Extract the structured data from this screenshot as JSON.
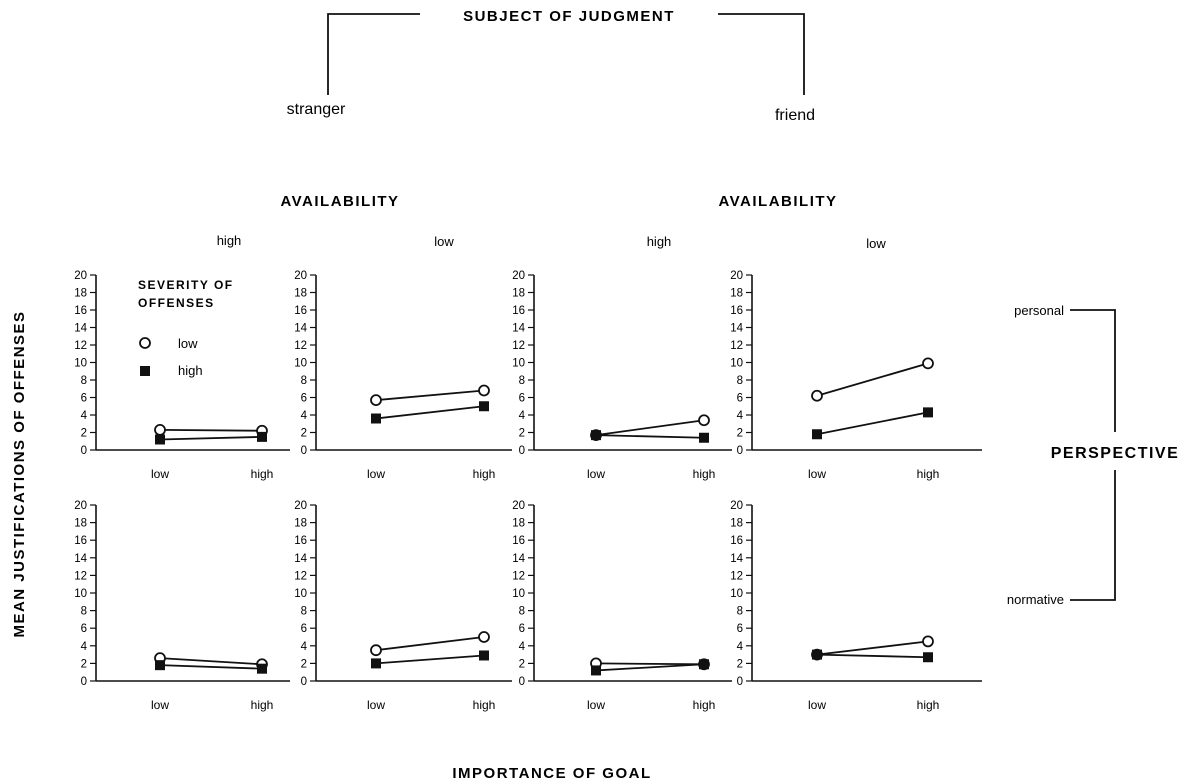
{
  "header": {
    "subject_title": "SUBJECT OF JUDGMENT",
    "stranger_label": "stranger",
    "friend_label": "friend",
    "availability_left": "AVAILABILITY",
    "availability_right": "AVAILABILITY",
    "availability_levels": [
      "high",
      "low",
      "high",
      "low"
    ]
  },
  "perspective": {
    "title": "PERSPECTIVE",
    "personal_label": "personal",
    "normative_label": "normative"
  },
  "y_axis_title": "MEAN JUSTIFICATIONS OF OFFENSES",
  "x_axis_title": "IMPORTANCE OF GOAL",
  "legend": {
    "title_line1": "SEVERITY OF",
    "title_line2": "OFFENSES",
    "items": [
      {
        "label": "low",
        "marker": "open-circle"
      },
      {
        "label": "high",
        "marker": "filled-square"
      }
    ]
  },
  "chart_data": {
    "type": "line",
    "facets": {
      "columns": [
        "stranger / high availability",
        "stranger / low availability",
        "friend / high availability",
        "friend / low availability"
      ],
      "rows": [
        "personal",
        "normative"
      ]
    },
    "x": [
      "low",
      "high"
    ],
    "xlabel": "IMPORTANCE OF GOAL",
    "ylabel": "MEAN JUSTIFICATIONS OF OFFENSES",
    "ylim": [
      0,
      20
    ],
    "yticks": [
      0,
      2,
      4,
      6,
      8,
      10,
      12,
      14,
      16,
      18,
      20
    ],
    "panels": [
      {
        "row": 0,
        "col": 0,
        "series": [
          {
            "name": "low",
            "values": [
              2.3,
              2.2
            ]
          },
          {
            "name": "high",
            "values": [
              1.2,
              1.5
            ]
          }
        ]
      },
      {
        "row": 0,
        "col": 1,
        "series": [
          {
            "name": "low",
            "values": [
              5.7,
              6.8
            ]
          },
          {
            "name": "high",
            "values": [
              3.6,
              5.0
            ]
          }
        ]
      },
      {
        "row": 0,
        "col": 2,
        "series": [
          {
            "name": "low",
            "values": [
              1.7,
              3.4
            ]
          },
          {
            "name": "high",
            "values": [
              1.7,
              1.4
            ]
          }
        ]
      },
      {
        "row": 0,
        "col": 3,
        "series": [
          {
            "name": "low",
            "values": [
              6.2,
              9.9
            ]
          },
          {
            "name": "high",
            "values": [
              1.8,
              4.3
            ]
          }
        ]
      },
      {
        "row": 1,
        "col": 0,
        "series": [
          {
            "name": "low",
            "values": [
              2.6,
              1.9
            ]
          },
          {
            "name": "high",
            "values": [
              1.8,
              1.4
            ]
          }
        ]
      },
      {
        "row": 1,
        "col": 1,
        "series": [
          {
            "name": "low",
            "values": [
              3.5,
              5.0
            ]
          },
          {
            "name": "high",
            "values": [
              2.0,
              2.9
            ]
          }
        ]
      },
      {
        "row": 1,
        "col": 2,
        "series": [
          {
            "name": "low",
            "values": [
              2.0,
              1.9
            ]
          },
          {
            "name": "high",
            "values": [
              1.2,
              1.9
            ]
          }
        ]
      },
      {
        "row": 1,
        "col": 3,
        "series": [
          {
            "name": "low",
            "values": [
              3.0,
              4.5
            ]
          },
          {
            "name": "high",
            "values": [
              3.0,
              2.7
            ]
          }
        ]
      }
    ]
  }
}
